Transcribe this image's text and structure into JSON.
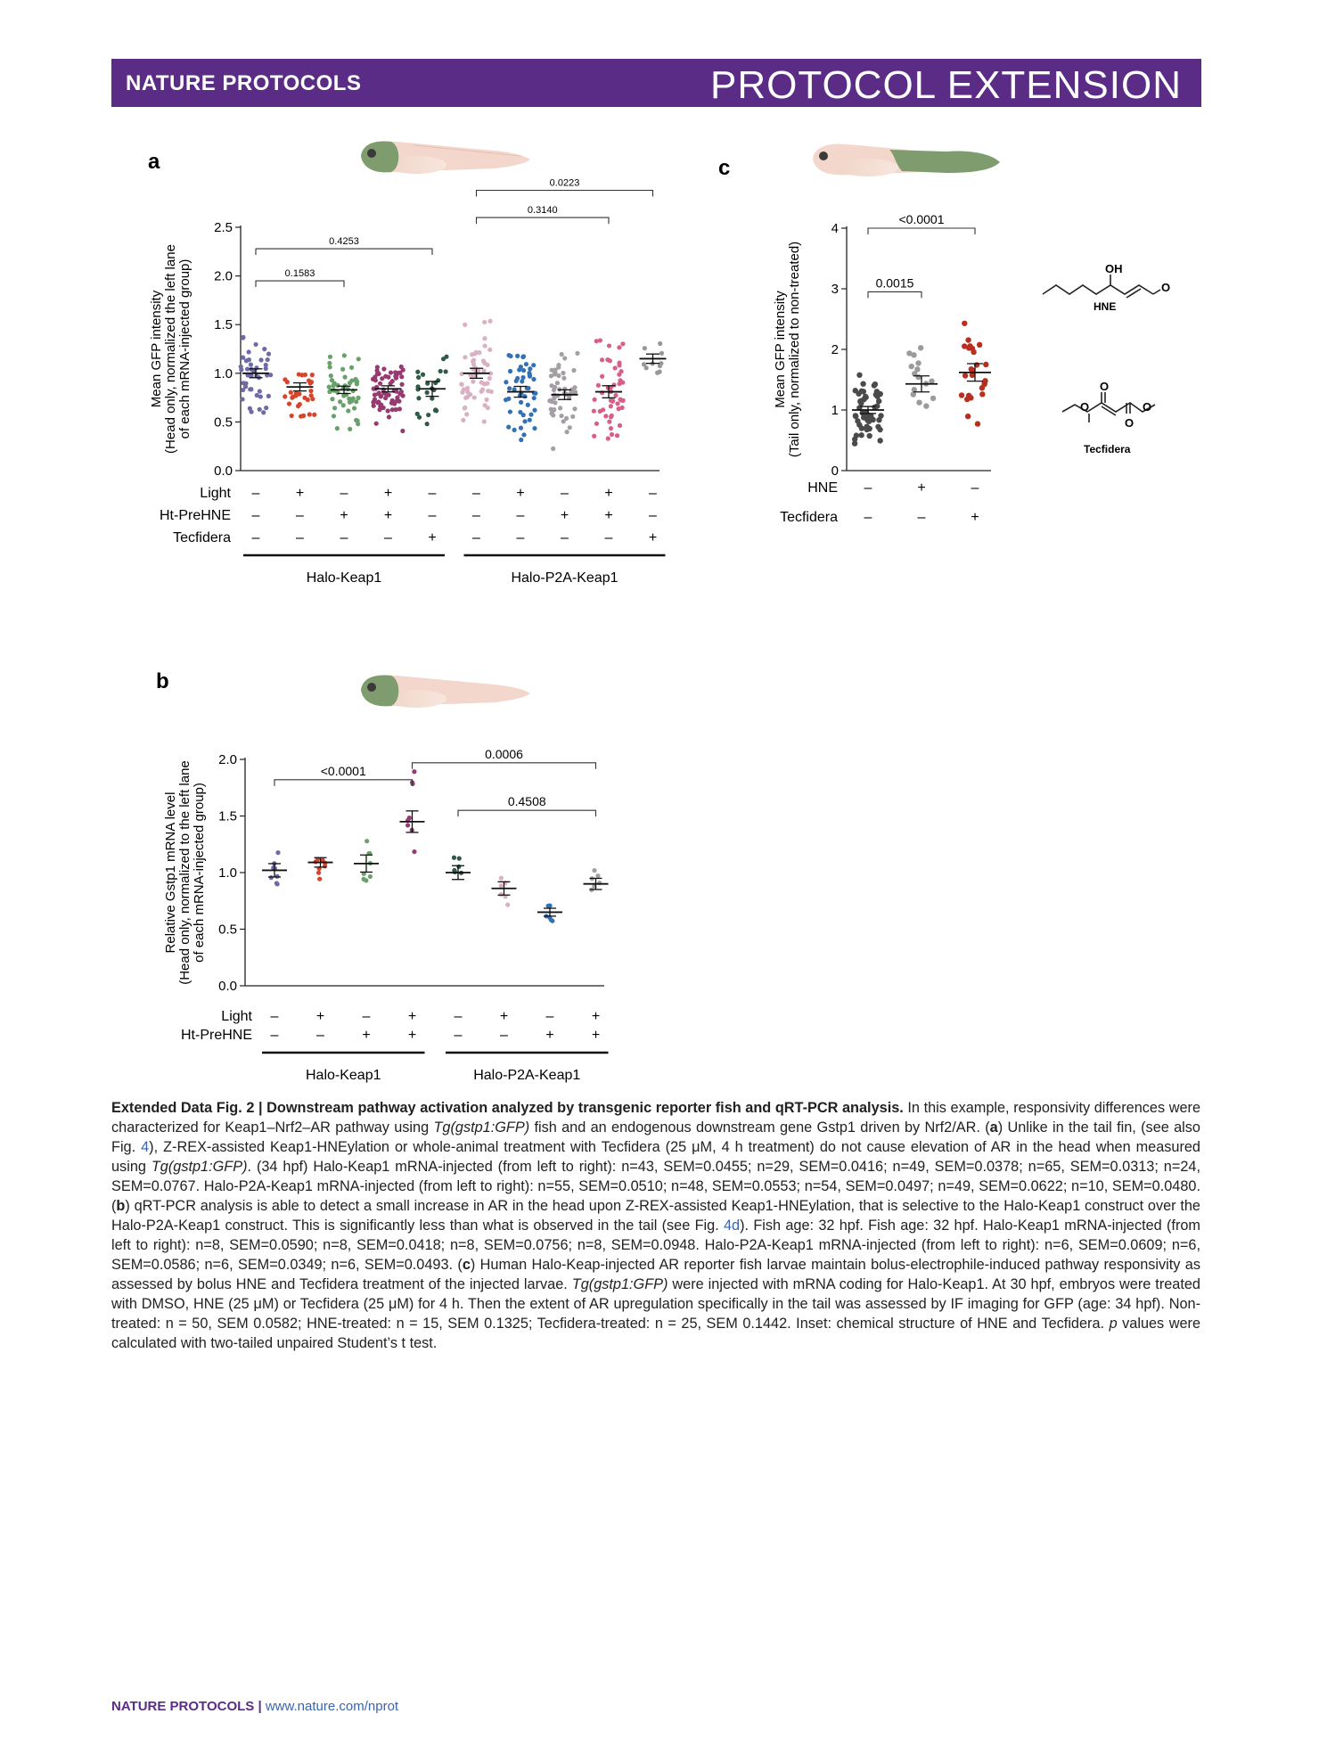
{
  "header": {
    "journal": "NATURE PROTOCOLS",
    "section": "PROTOCOL EXTENSION"
  },
  "panels": {
    "a": {
      "letter": "a"
    },
    "b": {
      "letter": "b"
    },
    "c": {
      "letter": "c"
    }
  },
  "colors": {
    "purple": "#5b2c86",
    "dot_a": [
      "#6d6aa6",
      "#d8442b",
      "#6aa06b",
      "#973a72",
      "#2f5a46",
      "#d9b1c2",
      "#3471b3",
      "#a49fa4",
      "#d85f86",
      "#9a9696"
    ],
    "dot_b": [
      "#6d6aa6",
      "#d8442b",
      "#6aa06b",
      "#973a72",
      "#2f5a46",
      "#d9b1c2",
      "#3471b3",
      "#a49fa4"
    ],
    "dot_c": [
      "#4b4a4a",
      "#9c9a9a",
      "#b7301f"
    ]
  },
  "chart_data": [
    {
      "panel": "a",
      "type": "scatter",
      "ylabel_lines": [
        "Mean GFP intensity",
        "(Head only, normalized the left lane",
        "of each mRNA-injected group)"
      ],
      "ylim": [
        0,
        2.5
      ],
      "yticks": [
        "0.0",
        "0.5",
        "1.0",
        "1.5",
        "2.0",
        "2.5"
      ],
      "condition_rows": [
        {
          "name": "Light",
          "values": [
            "–",
            "+",
            "–",
            "+",
            "–",
            "–",
            "+",
            "–",
            "+",
            "–"
          ]
        },
        {
          "name": "Ht-PreHNE",
          "values": [
            "–",
            "–",
            "+",
            "+",
            "–",
            "–",
            "–",
            "+",
            "+",
            "–"
          ]
        },
        {
          "name": "Tecfidera",
          "values": [
            "–",
            "–",
            "–",
            "–",
            "+",
            "–",
            "–",
            "–",
            "–",
            "+"
          ]
        }
      ],
      "groups": [
        {
          "name": "Halo-Keap1",
          "from": 0,
          "to": 4
        },
        {
          "name": "Halo-P2A-Keap1",
          "from": 5,
          "to": 9
        }
      ],
      "means": [
        1.0,
        0.86,
        0.83,
        0.84,
        0.84,
        1.0,
        0.81,
        0.78,
        0.81,
        1.15
      ],
      "sem": [
        0.0455,
        0.0416,
        0.0378,
        0.0313,
        0.0767,
        0.051,
        0.0553,
        0.0497,
        0.0622,
        0.048
      ],
      "n": [
        43,
        29,
        49,
        65,
        24,
        55,
        48,
        54,
        49,
        10
      ],
      "comparisons": [
        {
          "from": 0,
          "to": 2,
          "label": "0.1583",
          "y": 1.95
        },
        {
          "from": 0,
          "to": 4,
          "label": "0.4253",
          "y": 2.28
        },
        {
          "from": 5,
          "to": 8,
          "label": "0.3140",
          "y": 2.6
        },
        {
          "from": 5,
          "to": 9,
          "label": "0.0223",
          "y": 2.88
        }
      ]
    },
    {
      "panel": "b",
      "type": "scatter",
      "ylabel_lines": [
        "Relative Gstp1 mRNA level",
        "(Head only, normalized to the left lane",
        "of each mRNA-injected group)"
      ],
      "ylim": [
        0,
        2.0
      ],
      "yticks": [
        "0.0",
        "0.5",
        "1.0",
        "1.5",
        "2.0"
      ],
      "condition_rows": [
        {
          "name": "Light",
          "values": [
            "–",
            "+",
            "–",
            "+",
            "–",
            "+",
            "–",
            "+"
          ]
        },
        {
          "name": "Ht-PreHNE",
          "values": [
            "–",
            "–",
            "+",
            "+",
            "–",
            "–",
            "+",
            "+"
          ]
        }
      ],
      "groups": [
        {
          "name": "Halo-Keap1",
          "from": 0,
          "to": 3
        },
        {
          "name": "Halo-P2A-Keap1",
          "from": 4,
          "to": 7
        }
      ],
      "means": [
        1.02,
        1.09,
        1.08,
        1.45,
        1.0,
        0.86,
        0.65,
        0.9
      ],
      "sem": [
        0.059,
        0.0418,
        0.0756,
        0.0948,
        0.0609,
        0.0586,
        0.0349,
        0.0493
      ],
      "n": [
        8,
        8,
        8,
        8,
        6,
        6,
        6,
        6
      ],
      "comparisons": [
        {
          "from": 0,
          "to": 3,
          "label": "<0.0001",
          "y": 1.82
        },
        {
          "from": 3,
          "to": 7,
          "label": "0.0006",
          "y": 1.97
        },
        {
          "from": 4,
          "to": 7,
          "label": "0.4508",
          "y": 1.55
        }
      ]
    },
    {
      "panel": "c",
      "type": "scatter",
      "ylabel_lines": [
        "Mean GFP intensity",
        "(Tail only, normalized to non-treated)"
      ],
      "ylim": [
        0,
        4
      ],
      "yticks": [
        "0",
        "1",
        "2",
        "3",
        "4"
      ],
      "condition_rows": [
        {
          "name": "HNE",
          "values": [
            "–",
            "+",
            "–"
          ]
        },
        {
          "name": "Tecfidera",
          "values": [
            "–",
            "–",
            "+"
          ]
        }
      ],
      "means": [
        1.0,
        1.43,
        1.62
      ],
      "sem": [
        0.0582,
        0.1325,
        0.1442
      ],
      "n": [
        50,
        15,
        25
      ],
      "comparisons": [
        {
          "from": 0,
          "to": 1,
          "label": "0.0015",
          "y": 2.95
        },
        {
          "from": 0,
          "to": 2,
          "label": "<0.0001",
          "y": 4.0
        }
      ]
    }
  ],
  "inset": {
    "hne_label": "HNE",
    "hne_oh": "OH",
    "hne_o": "O",
    "tec_label": "Tecfidera",
    "tec_o": "O"
  },
  "caption": {
    "lead_bold": "Extended Data Fig. 2 | Downstream pathway activation analyzed by transgenic reporter fish and qRT-PCR analysis.",
    "t1": " In this example, responsivity differences were characterized for Keap1–Nrf2–AR pathway using ",
    "tg1": "Tg(gstp1:GFP)",
    "t2": " fish and an endogenous downstream gene Gstp1 driven by Nrf2/AR. (",
    "a": "a",
    "t3": ") Unlike in the tail fin, (see also Fig. ",
    "fig4": "4",
    "t4": "), Z-REX-assisted Keap1-HNEylation or whole-animal treatment with Tecfidera (25 μM, 4 h treatment) do not cause elevation of AR in the head when measured using ",
    "tg2": "Tg(gstp1:GFP)",
    "t5": ". (34 hpf) Halo-Keap1 mRNA-injected (from left to right): n=43, SEM=0.0455; n=29, SEM=0.0416; n=49, SEM=0.0378; n=65, SEM=0.0313; n=24, SEM=0.0767. Halo-P2A-Keap1 mRNA-injected (from left to right): n=55, SEM=0.0510; n=48, SEM=0.0553; n=54, SEM=0.0497; n=49, SEM=0.0622; n=10, SEM=0.0480. (",
    "b": "b",
    "t6": ") qRT-PCR analysis is able to detect a small increase in AR in the head upon Z-REX-assisted Keap1-HNEylation, that is selective to the Halo-Keap1 construct over the Halo-P2A-Keap1 construct. This is significantly less than what is observed in the tail (see Fig. ",
    "fig4d": "4d",
    "t7": "). Fish age: 32 hpf. Fish age: 32 hpf. Halo-Keap1 mRNA-injected (from left to right): n=8, SEM=0.0590; n=8, SEM=0.0418; n=8, SEM=0.0756; n=8, SEM=0.0948. Halo-P2A-Keap1 mRNA-injected (from left to right): n=6, SEM=0.0609; n=6, SEM=0.0586; n=6, SEM=0.0349; n=6, SEM=0.0493. (",
    "c": "c",
    "t8": ") Human Halo-Keap-injected AR reporter fish larvae maintain bolus-electrophile-induced pathway responsivity as assessed by bolus HNE and Tecfidera treatment of the injected larvae. ",
    "tg3": "Tg(gstp1:GFP)",
    "t9": " were injected with mRNA coding for Halo-Keap1. At 30 hpf, embryos were treated with DMSO, HNE (25 μM) or Tecfidera (25 μM) for 4 h. Then the extent of AR upregulation specifically in the tail was assessed by IF imaging for GFP (age: 34 hpf). Non-treated: n = 50, SEM 0.0582; HNE-treated: n = 15, SEM 0.1325; Tecfidera-treated: n = 25, SEM 0.1442. Inset: chemical structure of HNE and Tecfidera. ",
    "p": "p",
    "t10": " values were calculated with two-tailed unpaired Student’s t test."
  },
  "footer": {
    "journal": "NATURE PROTOCOLS",
    "sep": " | ",
    "url": "www.nature.com/nprot"
  }
}
